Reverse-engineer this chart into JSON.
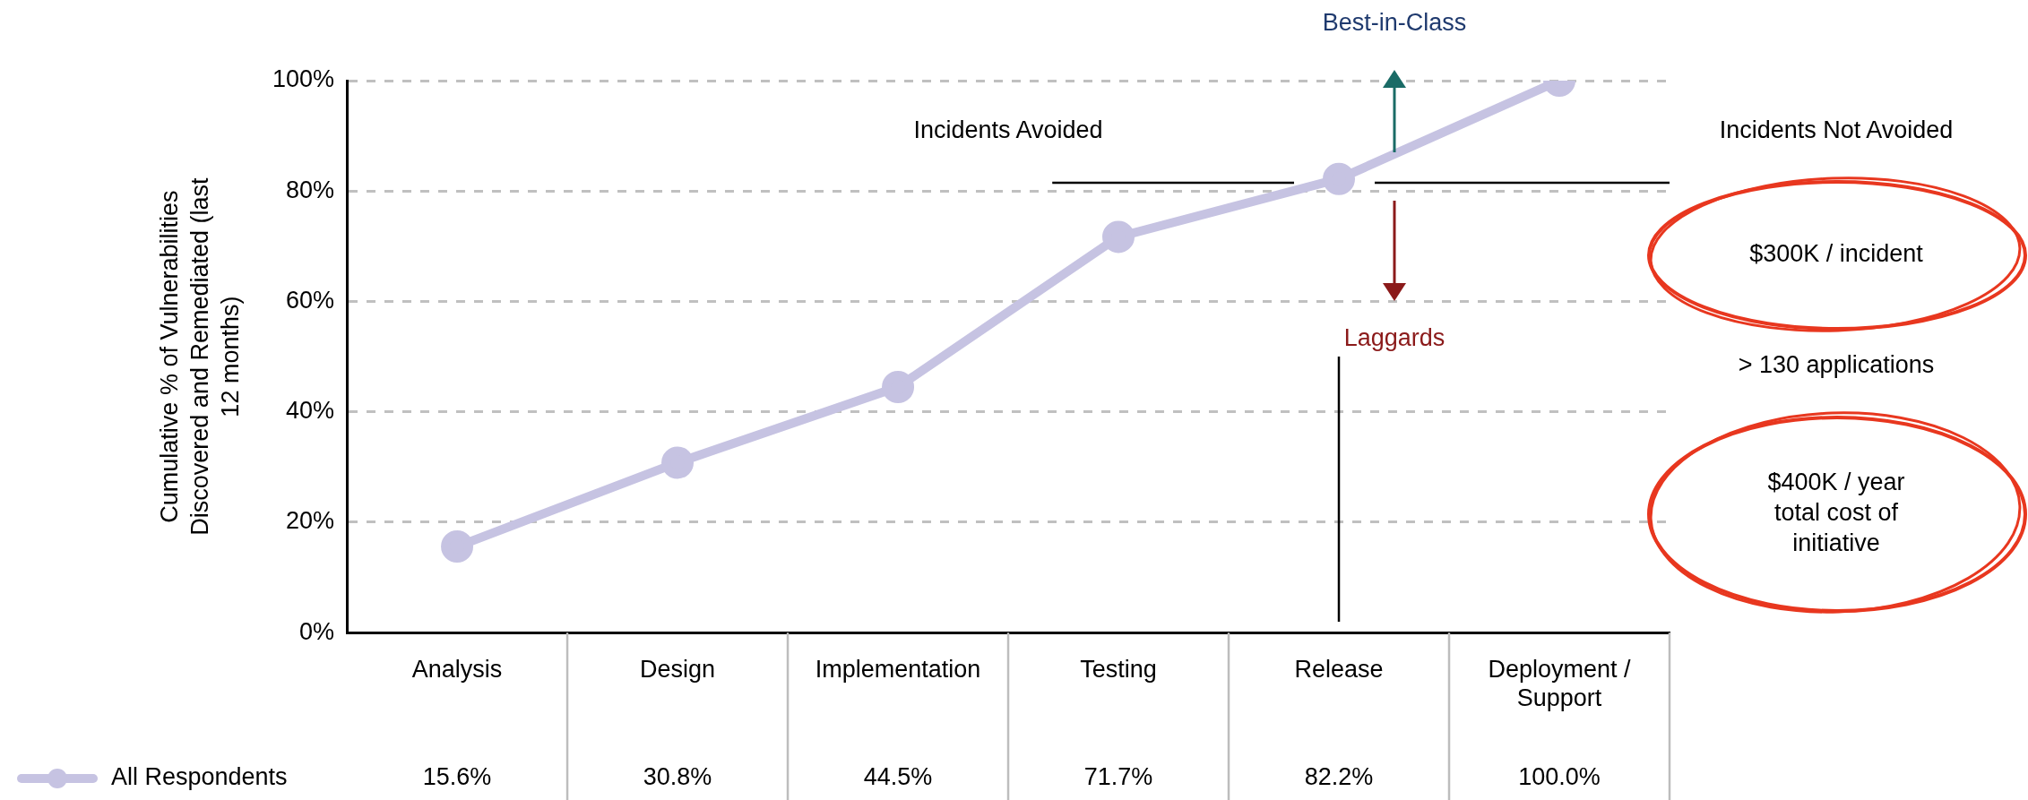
{
  "chart_data": {
    "type": "line",
    "ylabel": "Cumulative % of Vulnerabilities Discovered and Remediated (last 12 months)",
    "categories": [
      "Analysis",
      "Design",
      "Implementation",
      "Testing",
      "Release",
      "Deployment / Support"
    ],
    "series": [
      {
        "name": "All Respondents",
        "color": "#c6c3e2",
        "values": [
          15.6,
          30.8,
          44.5,
          71.7,
          82.2,
          100.0
        ],
        "value_labels": [
          "15.6%",
          "30.8%",
          "44.5%",
          "71.7%",
          "82.2%",
          "100.0%"
        ]
      }
    ],
    "ylim": [
      0,
      100
    ],
    "yticks": [
      {
        "value": 0,
        "label": "0%"
      },
      {
        "value": 20,
        "label": "20%"
      },
      {
        "value": 40,
        "label": "40%"
      },
      {
        "value": 60,
        "label": "60%"
      },
      {
        "value": 80,
        "label": "80%"
      },
      {
        "value": 100,
        "label": "100%"
      }
    ],
    "grid": "y",
    "legend": "bottom left",
    "marker": "circle",
    "line_style": "solid",
    "ref_lines": [
      {
        "axis": "y",
        "value": 81.5,
        "color": "#000000"
      },
      {
        "axis": "x",
        "value": "Release",
        "color": "#000000"
      }
    ],
    "annotations": [
      "Best-in-Class",
      "Incidents Avoided",
      "Incidents Not Avoided",
      "Laggards",
      "$300K / incident",
      "> 130 applications",
      "$400K / year total cost of initiative"
    ]
  }
}
